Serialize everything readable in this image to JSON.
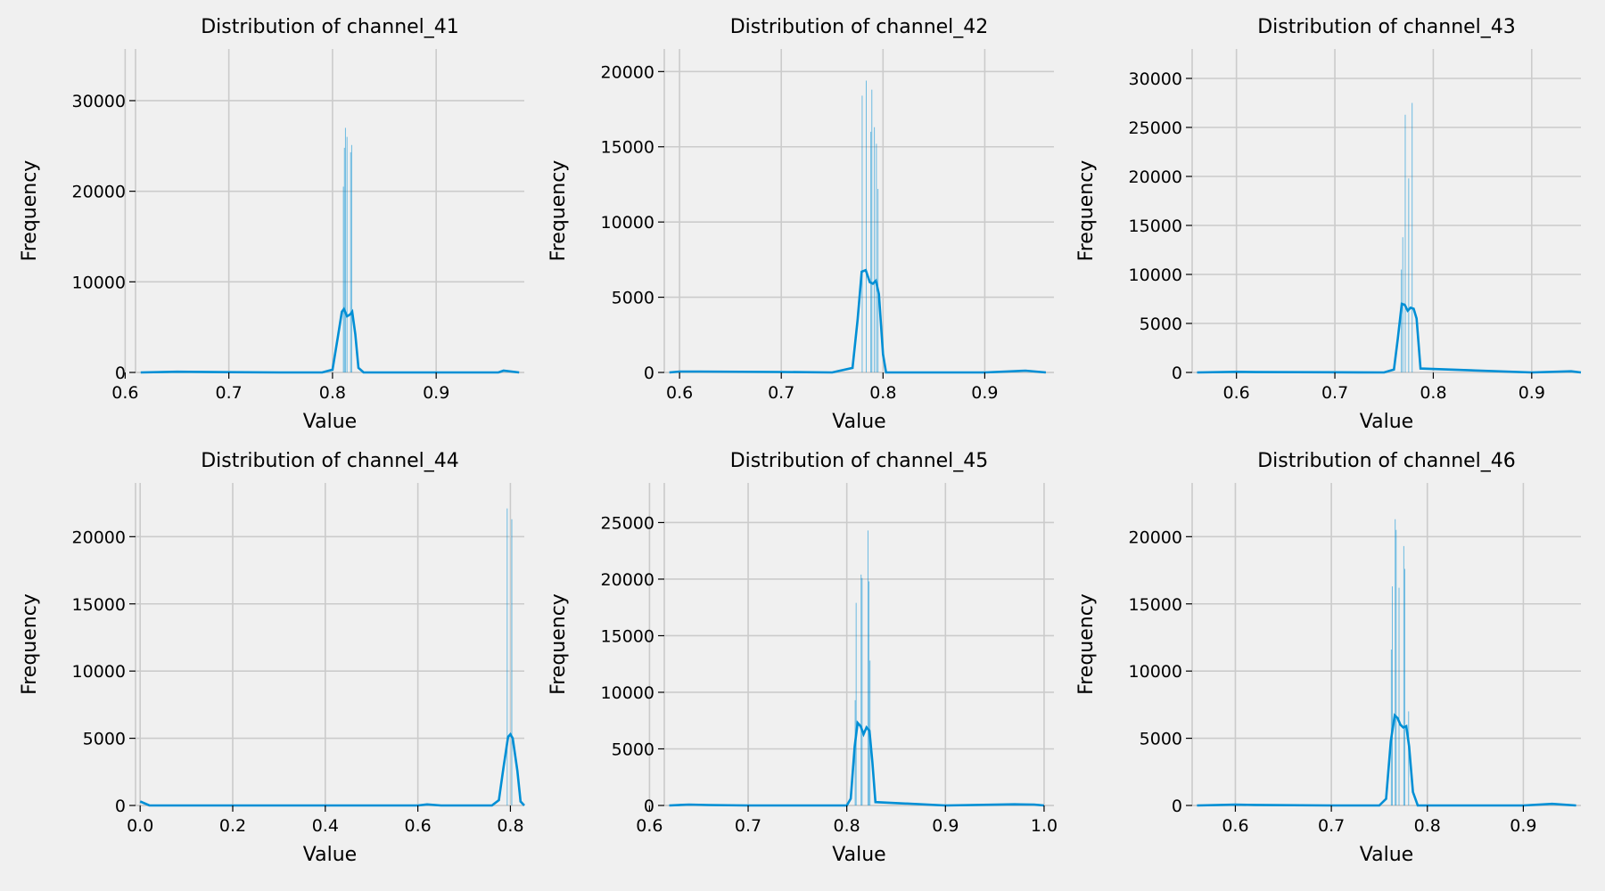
{
  "colors": {
    "background": "#f0f0f0",
    "series": "#008fd5",
    "grid": "#cbcbcb"
  },
  "chart_data": [
    {
      "type": "histogram",
      "title": "Distribution of channel_41",
      "xlabel": "Value",
      "ylabel": "Frequency",
      "xlim": [
        0.61,
        0.985
      ],
      "ylim": [
        0,
        35700
      ],
      "xticks": [
        0.6,
        0.7,
        0.8,
        0.9
      ],
      "xtick_labels": [
        "0.6",
        "0.7",
        "0.8",
        "0.9"
      ],
      "yticks": [
        0,
        10000,
        20000,
        30000
      ],
      "ytick_labels": [
        "0",
        "10000",
        "20000",
        "30000"
      ],
      "bars": [
        {
          "x": 0.8105,
          "y": 20500
        },
        {
          "x": 0.8115,
          "y": 24800
        },
        {
          "x": 0.8125,
          "y": 27000
        },
        {
          "x": 0.814,
          "y": 26000
        },
        {
          "x": 0.8175,
          "y": 24300
        },
        {
          "x": 0.8185,
          "y": 25100
        }
      ],
      "kde": {
        "x": [
          0.615,
          0.64,
          0.65,
          0.7,
          0.75,
          0.79,
          0.8,
          0.805,
          0.809,
          0.811,
          0.814,
          0.817,
          0.819,
          0.822,
          0.825,
          0.83,
          0.9,
          0.96,
          0.965,
          0.98
        ],
        "y": [
          0,
          60,
          80,
          30,
          0,
          0,
          300,
          3800,
          6700,
          7000,
          6200,
          6400,
          6700,
          4200,
          500,
          0,
          0,
          0,
          200,
          0
        ]
      }
    },
    {
      "type": "histogram",
      "title": "Distribution of channel_42",
      "xlabel": "Value",
      "ylabel": "Frequency",
      "xlim": [
        0.585,
        0.968
      ],
      "ylim": [
        0,
        21500
      ],
      "xticks": [
        0.6,
        0.7,
        0.8,
        0.9
      ],
      "xtick_labels": [
        "0.6",
        "0.7",
        "0.8",
        "0.9"
      ],
      "yticks": [
        0,
        5000,
        10000,
        15000,
        20000
      ],
      "ytick_labels": [
        "0",
        "5000",
        "10000",
        "15000",
        "20000"
      ],
      "bars": [
        {
          "x": 0.7795,
          "y": 18400
        },
        {
          "x": 0.7835,
          "y": 19400
        },
        {
          "x": 0.788,
          "y": 16000
        },
        {
          "x": 0.789,
          "y": 18800
        },
        {
          "x": 0.7915,
          "y": 16300
        },
        {
          "x": 0.7935,
          "y": 15200
        },
        {
          "x": 0.795,
          "y": 12200
        }
      ],
      "kde": {
        "x": [
          0.59,
          0.6,
          0.62,
          0.7,
          0.75,
          0.77,
          0.775,
          0.779,
          0.783,
          0.787,
          0.79,
          0.793,
          0.796,
          0.8,
          0.803,
          0.9,
          0.94,
          0.96
        ],
        "y": [
          0,
          60,
          60,
          30,
          0,
          300,
          3500,
          6700,
          6800,
          6000,
          5900,
          6100,
          5200,
          1200,
          0,
          0,
          120,
          0
        ]
      }
    },
    {
      "type": "histogram",
      "title": "Distribution of channel_43",
      "xlabel": "Value",
      "ylabel": "Frequency",
      "xlim": [
        0.555,
        0.95
      ],
      "ylim": [
        0,
        33000
      ],
      "xticks": [
        0.6,
        0.7,
        0.8,
        0.9
      ],
      "xtick_labels": [
        "0.6",
        "0.7",
        "0.8",
        "0.9"
      ],
      "yticks": [
        0,
        5000,
        10000,
        15000,
        20000,
        25000,
        30000
      ],
      "ytick_labels": [
        "0",
        "5000",
        "10000",
        "15000",
        "20000",
        "25000",
        "30000"
      ],
      "bars": [
        {
          "x": 0.7675,
          "y": 10500
        },
        {
          "x": 0.769,
          "y": 13800
        },
        {
          "x": 0.7715,
          "y": 26300
        },
        {
          "x": 0.775,
          "y": 19800
        },
        {
          "x": 0.7785,
          "y": 27500
        }
      ],
      "kde": {
        "x": [
          0.56,
          0.6,
          0.62,
          0.7,
          0.75,
          0.76,
          0.764,
          0.768,
          0.771,
          0.774,
          0.777,
          0.78,
          0.783,
          0.787,
          0.9,
          0.94,
          0.95
        ],
        "y": [
          0,
          60,
          40,
          20,
          0,
          300,
          3500,
          7000,
          6900,
          6300,
          6600,
          6500,
          5500,
          400,
          0,
          120,
          0
        ]
      }
    },
    {
      "type": "histogram",
      "title": "Distribution of channel_44",
      "xlabel": "Value",
      "ylabel": "Frequency",
      "xlim": [
        -0.01,
        0.83
      ],
      "ylim": [
        0,
        24000
      ],
      "xticks": [
        0.0,
        0.2,
        0.4,
        0.6,
        0.8
      ],
      "xtick_labels": [
        "0.0",
        "0.2",
        "0.4",
        "0.6",
        "0.8"
      ],
      "yticks": [
        0,
        5000,
        10000,
        15000,
        20000
      ],
      "ytick_labels": [
        "0",
        "5000",
        "10000",
        "15000",
        "20000"
      ],
      "bars": [
        {
          "x": 0.793,
          "y": 22100
        },
        {
          "x": 0.803,
          "y": 21300
        }
      ],
      "kde": {
        "x": [
          0.0,
          0.02,
          0.1,
          0.6,
          0.62,
          0.65,
          0.76,
          0.775,
          0.785,
          0.795,
          0.8,
          0.805,
          0.815,
          0.822,
          0.83
        ],
        "y": [
          300,
          0,
          0,
          0,
          80,
          0,
          0,
          400,
          2800,
          5100,
          5300,
          5000,
          2600,
          300,
          0
        ]
      }
    },
    {
      "type": "histogram",
      "title": "Distribution of channel_45",
      "xlabel": "Value",
      "ylabel": "Frequency",
      "xlim": [
        0.615,
        1.01
      ],
      "ylim": [
        0,
        28500
      ],
      "xticks": [
        0.6,
        0.7,
        0.8,
        0.9,
        1.0
      ],
      "xtick_labels": [
        "0.6",
        "0.7",
        "0.8",
        "0.9",
        "1.0"
      ],
      "yticks": [
        0,
        5000,
        10000,
        15000,
        20000,
        25000
      ],
      "ytick_labels": [
        "0",
        "5000",
        "10000",
        "15000",
        "20000",
        "25000"
      ],
      "bars": [
        {
          "x": 0.8085,
          "y": 9300
        },
        {
          "x": 0.8095,
          "y": 17900
        },
        {
          "x": 0.8145,
          "y": 20400
        },
        {
          "x": 0.8155,
          "y": 20100
        },
        {
          "x": 0.8215,
          "y": 24300
        },
        {
          "x": 0.8225,
          "y": 19800
        },
        {
          "x": 0.8235,
          "y": 12800
        }
      ],
      "kde": {
        "x": [
          0.62,
          0.64,
          0.66,
          0.7,
          0.8,
          0.804,
          0.808,
          0.811,
          0.814,
          0.817,
          0.82,
          0.823,
          0.826,
          0.829,
          0.9,
          0.97,
          0.99,
          1.0
        ],
        "y": [
          0,
          80,
          40,
          0,
          0,
          600,
          5200,
          7300,
          7000,
          6300,
          6900,
          6600,
          3800,
          300,
          0,
          100,
          80,
          0
        ]
      }
    },
    {
      "type": "histogram",
      "title": "Distribution of channel_46",
      "xlabel": "Value",
      "ylabel": "Frequency",
      "xlim": [
        0.555,
        0.96
      ],
      "ylim": [
        0,
        24000
      ],
      "xticks": [
        0.6,
        0.7,
        0.8,
        0.9
      ],
      "xtick_labels": [
        "0.6",
        "0.7",
        "0.8",
        "0.9"
      ],
      "yticks": [
        0,
        5000,
        10000,
        15000,
        20000
      ],
      "ytick_labels": [
        "0",
        "5000",
        "10000",
        "15000",
        "20000"
      ],
      "bars": [
        {
          "x": 0.7625,
          "y": 11600
        },
        {
          "x": 0.7635,
          "y": 16300
        },
        {
          "x": 0.7665,
          "y": 21300
        },
        {
          "x": 0.7675,
          "y": 20500
        },
        {
          "x": 0.7705,
          "y": 16200
        },
        {
          "x": 0.7755,
          "y": 19300
        },
        {
          "x": 0.7765,
          "y": 17600
        },
        {
          "x": 0.7805,
          "y": 7000
        }
      ],
      "kde": {
        "x": [
          0.56,
          0.6,
          0.62,
          0.7,
          0.75,
          0.757,
          0.762,
          0.766,
          0.769,
          0.772,
          0.775,
          0.778,
          0.781,
          0.785,
          0.79,
          0.9,
          0.93,
          0.955
        ],
        "y": [
          0,
          60,
          40,
          0,
          0,
          500,
          4800,
          6700,
          6500,
          6000,
          5800,
          5900,
          4400,
          1000,
          0,
          0,
          120,
          0
        ]
      }
    }
  ]
}
